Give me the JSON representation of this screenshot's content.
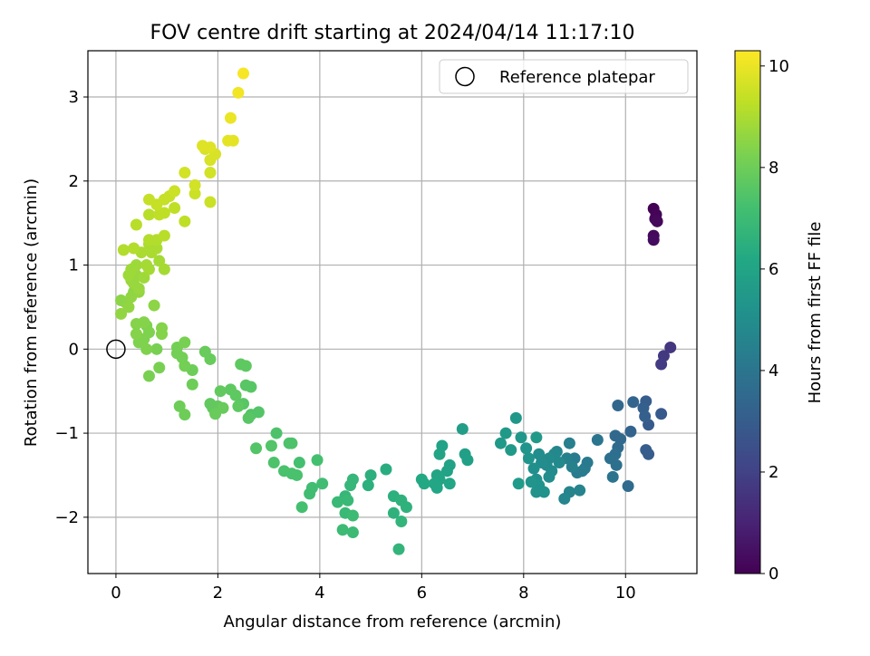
{
  "chart_data": {
    "type": "scatter",
    "title": "FOV centre drift starting at 2024/04/14 11:17:10",
    "xlabel": "Angular distance from reference (arcmin)",
    "ylabel": "Rotation from reference (arcmin)",
    "xlim": [
      -0.55,
      11.4
    ],
    "ylim": [
      -2.67,
      3.55
    ],
    "xticks": [
      0,
      2,
      4,
      6,
      8,
      10
    ],
    "yticks": [
      -2,
      -1,
      0,
      1,
      2,
      3
    ],
    "xtick_labels": [
      "0",
      "2",
      "4",
      "6",
      "8",
      "10"
    ],
    "ytick_labels": [
      "−2",
      "−1",
      "0",
      "1",
      "2",
      "3"
    ],
    "grid": true,
    "legend": {
      "position": "top-right",
      "label": "Reference platepar"
    },
    "reference_point": {
      "x": 0,
      "y": 0
    },
    "colorbar": {
      "label": "Hours from first FF file",
      "range": [
        0,
        10.3
      ],
      "ticks": [
        0,
        2,
        4,
        6,
        8,
        10
      ],
      "tick_labels": [
        "0",
        "2",
        "4",
        "6",
        "8",
        "10"
      ],
      "colormap": "viridis"
    },
    "points": [
      [
        10.55,
        1.67,
        0.0
      ],
      [
        10.6,
        1.6,
        0.1
      ],
      [
        10.58,
        1.55,
        0.15
      ],
      [
        10.62,
        1.52,
        0.2
      ],
      [
        10.55,
        1.35,
        0.25
      ],
      [
        10.55,
        1.3,
        0.3
      ],
      [
        10.88,
        0.02,
        1.6
      ],
      [
        10.75,
        -0.08,
        1.7
      ],
      [
        10.7,
        -0.18,
        1.8
      ],
      [
        10.45,
        -0.9,
        2.9
      ],
      [
        10.7,
        -0.77,
        2.9
      ],
      [
        10.4,
        -0.62,
        3.0
      ],
      [
        10.35,
        -0.7,
        3.1
      ],
      [
        10.38,
        -0.8,
        3.1
      ],
      [
        10.4,
        -1.2,
        3.0
      ],
      [
        10.45,
        -1.25,
        3.0
      ],
      [
        10.15,
        -0.63,
        3.3
      ],
      [
        10.1,
        -0.98,
        3.3
      ],
      [
        9.85,
        -0.67,
        3.4
      ],
      [
        9.8,
        -1.03,
        3.5
      ],
      [
        9.9,
        -1.07,
        3.5
      ],
      [
        9.85,
        -1.17,
        3.6
      ],
      [
        10.05,
        -1.63,
        3.6
      ],
      [
        9.8,
        -1.25,
        3.7
      ],
      [
        9.7,
        -1.3,
        3.8
      ],
      [
        9.82,
        -1.38,
        3.8
      ],
      [
        9.75,
        -1.52,
        3.9
      ],
      [
        9.45,
        -1.08,
        4.0
      ],
      [
        9.25,
        -1.35,
        4.2
      ],
      [
        9.2,
        -1.42,
        4.2
      ],
      [
        9.0,
        -1.3,
        4.3
      ],
      [
        9.15,
        -1.45,
        4.3
      ],
      [
        9.05,
        -1.47,
        4.3
      ],
      [
        8.9,
        -1.12,
        4.4
      ],
      [
        8.85,
        -1.3,
        4.5
      ],
      [
        8.95,
        -1.4,
        4.5
      ],
      [
        9.1,
        -1.68,
        4.6
      ],
      [
        8.9,
        -1.7,
        4.6
      ],
      [
        8.8,
        -1.78,
        4.7
      ],
      [
        8.65,
        -1.22,
        4.7
      ],
      [
        8.6,
        -1.25,
        4.8
      ],
      [
        8.7,
        -1.35,
        4.8
      ],
      [
        8.5,
        -1.3,
        4.9
      ],
      [
        8.45,
        -1.38,
        4.9
      ],
      [
        8.55,
        -1.45,
        4.9
      ],
      [
        8.5,
        -1.52,
        5.0
      ],
      [
        8.3,
        -1.25,
        5.0
      ],
      [
        8.35,
        -1.35,
        5.0
      ],
      [
        8.2,
        -1.42,
        5.1
      ],
      [
        8.25,
        -1.55,
        5.1
      ],
      [
        8.3,
        -1.62,
        5.2
      ],
      [
        8.4,
        -1.7,
        5.2
      ],
      [
        8.25,
        -1.7,
        5.2
      ],
      [
        8.15,
        -1.58,
        5.3
      ],
      [
        8.1,
        -1.3,
        5.3
      ],
      [
        8.05,
        -1.18,
        5.3
      ],
      [
        7.95,
        -1.05,
        5.4
      ],
      [
        7.85,
        -0.82,
        5.4
      ],
      [
        8.25,
        -1.05,
        5.5
      ],
      [
        7.55,
        -1.12,
        5.5
      ],
      [
        7.65,
        -1.0,
        5.5
      ],
      [
        7.75,
        -1.2,
        5.5
      ],
      [
        7.9,
        -1.6,
        5.6
      ],
      [
        6.8,
        -0.95,
        5.7
      ],
      [
        6.85,
        -1.25,
        5.8
      ],
      [
        6.9,
        -1.32,
        5.8
      ],
      [
        6.55,
        -1.38,
        5.9
      ],
      [
        6.5,
        -1.45,
        5.9
      ],
      [
        6.4,
        -1.15,
        5.9
      ],
      [
        6.35,
        -1.25,
        6.0
      ],
      [
        6.3,
        -1.5,
        6.0
      ],
      [
        6.35,
        -1.55,
        6.0
      ],
      [
        6.25,
        -1.6,
        6.1
      ],
      [
        6.3,
        -1.65,
        6.1
      ],
      [
        6.55,
        -1.6,
        6.1
      ],
      [
        6.0,
        -1.55,
        6.2
      ],
      [
        6.05,
        -1.6,
        6.2
      ],
      [
        5.3,
        -1.43,
        6.4
      ],
      [
        5.0,
        -1.5,
        6.5
      ],
      [
        4.95,
        -1.62,
        6.5
      ],
      [
        5.45,
        -1.75,
        6.5
      ],
      [
        5.6,
        -1.8,
        6.6
      ],
      [
        5.7,
        -1.88,
        6.6
      ],
      [
        5.45,
        -1.95,
        6.6
      ],
      [
        5.6,
        -2.05,
        6.7
      ],
      [
        5.55,
        -2.38,
        6.7
      ],
      [
        4.65,
        -1.55,
        6.8
      ],
      [
        4.6,
        -1.62,
        6.8
      ],
      [
        4.5,
        -1.75,
        6.8
      ],
      [
        4.35,
        -1.82,
        6.9
      ],
      [
        4.55,
        -1.8,
        6.9
      ],
      [
        4.5,
        -1.95,
        6.9
      ],
      [
        4.65,
        -1.98,
        7.0
      ],
      [
        4.45,
        -2.15,
        7.0
      ],
      [
        4.65,
        -2.18,
        7.0
      ],
      [
        4.05,
        -1.6,
        7.1
      ],
      [
        3.85,
        -1.65,
        7.1
      ],
      [
        3.8,
        -1.72,
        7.1
      ],
      [
        3.65,
        -1.88,
        7.2
      ],
      [
        3.95,
        -1.32,
        7.2
      ],
      [
        3.6,
        -1.35,
        7.2
      ],
      [
        3.55,
        -1.5,
        7.3
      ],
      [
        3.45,
        -1.48,
        7.3
      ],
      [
        3.3,
        -1.45,
        7.3
      ],
      [
        3.1,
        -1.35,
        7.4
      ],
      [
        3.45,
        -1.12,
        7.4
      ],
      [
        3.4,
        -1.12,
        7.4
      ],
      [
        3.15,
        -1.0,
        7.4
      ],
      [
        3.05,
        -1.15,
        7.5
      ],
      [
        2.75,
        -1.18,
        7.5
      ],
      [
        2.8,
        -0.75,
        7.5
      ],
      [
        2.65,
        -0.78,
        7.5
      ],
      [
        2.6,
        -0.82,
        7.6
      ],
      [
        2.55,
        -0.43,
        7.6
      ],
      [
        2.65,
        -0.45,
        7.6
      ],
      [
        2.5,
        -0.65,
        7.6
      ],
      [
        2.35,
        -0.55,
        7.7
      ],
      [
        2.25,
        -0.48,
        7.7
      ],
      [
        2.45,
        -0.18,
        7.7
      ],
      [
        2.55,
        -0.2,
        7.7
      ],
      [
        2.4,
        -0.68,
        7.7
      ],
      [
        2.05,
        -0.5,
        7.8
      ],
      [
        2.0,
        -0.68,
        7.8
      ],
      [
        1.9,
        -0.7,
        7.8
      ],
      [
        1.85,
        -0.65,
        7.8
      ],
      [
        1.95,
        -0.77,
        7.9
      ],
      [
        2.1,
        -0.7,
        7.9
      ],
      [
        1.75,
        -0.03,
        7.9
      ],
      [
        1.85,
        -0.12,
        7.9
      ],
      [
        1.25,
        -0.68,
        8.0
      ],
      [
        1.35,
        -0.78,
        8.0
      ],
      [
        1.5,
        -0.42,
        8.0
      ],
      [
        1.5,
        -0.25,
        8.0
      ],
      [
        1.35,
        -0.2,
        8.1
      ],
      [
        1.3,
        -0.1,
        8.1
      ],
      [
        1.2,
        0.02,
        8.1
      ],
      [
        1.2,
        -0.05,
        8.1
      ],
      [
        1.35,
        0.08,
        8.2
      ],
      [
        0.85,
        -0.22,
        8.2
      ],
      [
        0.65,
        -0.32,
        8.2
      ],
      [
        0.8,
        0.0,
        8.2
      ],
      [
        0.6,
        0.0,
        8.3
      ],
      [
        0.45,
        0.08,
        8.3
      ],
      [
        0.55,
        0.12,
        8.3
      ],
      [
        0.65,
        0.2,
        8.3
      ],
      [
        0.6,
        0.28,
        8.3
      ],
      [
        0.55,
        0.32,
        8.4
      ],
      [
        0.4,
        0.3,
        8.4
      ],
      [
        0.4,
        0.18,
        8.4
      ],
      [
        0.9,
        0.25,
        8.4
      ],
      [
        0.9,
        0.18,
        8.4
      ],
      [
        0.75,
        0.52,
        8.5
      ],
      [
        0.35,
        0.68,
        8.5
      ],
      [
        0.2,
        0.55,
        8.5
      ],
      [
        0.1,
        0.58,
        8.5
      ],
      [
        0.1,
        0.42,
        8.6
      ],
      [
        0.25,
        0.5,
        8.6
      ],
      [
        0.3,
        0.62,
        8.6
      ],
      [
        0.45,
        0.68,
        8.6
      ],
      [
        0.35,
        0.78,
        8.7
      ],
      [
        0.3,
        0.82,
        8.7
      ],
      [
        0.45,
        0.72,
        8.7
      ],
      [
        0.4,
        0.88,
        8.7
      ],
      [
        0.55,
        0.85,
        8.8
      ],
      [
        0.25,
        0.88,
        8.8
      ],
      [
        0.3,
        0.95,
        8.8
      ],
      [
        0.4,
        1.0,
        8.8
      ],
      [
        0.6,
        1.0,
        8.9
      ],
      [
        0.65,
        0.95,
        8.9
      ],
      [
        0.95,
        0.95,
        8.9
      ],
      [
        0.85,
        1.05,
        8.9
      ],
      [
        0.7,
        1.15,
        9.0
      ],
      [
        0.8,
        1.2,
        9.0
      ],
      [
        0.65,
        1.25,
        9.0
      ],
      [
        0.5,
        1.15,
        9.0
      ],
      [
        0.35,
        1.2,
        9.1
      ],
      [
        0.15,
        1.18,
        9.1
      ],
      [
        0.65,
        1.3,
        9.1
      ],
      [
        0.8,
        1.3,
        9.1
      ],
      [
        0.95,
        1.35,
        9.2
      ],
      [
        0.4,
        1.48,
        9.2
      ],
      [
        0.65,
        1.6,
        9.2
      ],
      [
        0.85,
        1.6,
        9.3
      ],
      [
        0.95,
        1.62,
        9.3
      ],
      [
        1.35,
        1.52,
        9.3
      ],
      [
        1.15,
        1.68,
        9.3
      ],
      [
        0.8,
        1.72,
        9.4
      ],
      [
        0.65,
        1.78,
        9.4
      ],
      [
        0.95,
        1.78,
        9.4
      ],
      [
        1.05,
        1.82,
        9.4
      ],
      [
        1.85,
        1.75,
        9.5
      ],
      [
        1.15,
        1.88,
        9.5
      ],
      [
        1.55,
        1.85,
        9.5
      ],
      [
        1.55,
        1.95,
        9.6
      ],
      [
        1.85,
        2.1,
        9.6
      ],
      [
        1.35,
        2.1,
        9.6
      ],
      [
        1.85,
        2.25,
        9.7
      ],
      [
        1.95,
        2.32,
        9.7
      ],
      [
        1.75,
        2.38,
        9.7
      ],
      [
        1.85,
        2.4,
        9.8
      ],
      [
        1.7,
        2.42,
        9.8
      ],
      [
        2.2,
        2.48,
        9.9
      ],
      [
        2.3,
        2.48,
        9.9
      ],
      [
        2.25,
        2.75,
        10.0
      ],
      [
        2.4,
        3.05,
        10.1
      ],
      [
        2.5,
        3.28,
        10.2
      ]
    ]
  }
}
